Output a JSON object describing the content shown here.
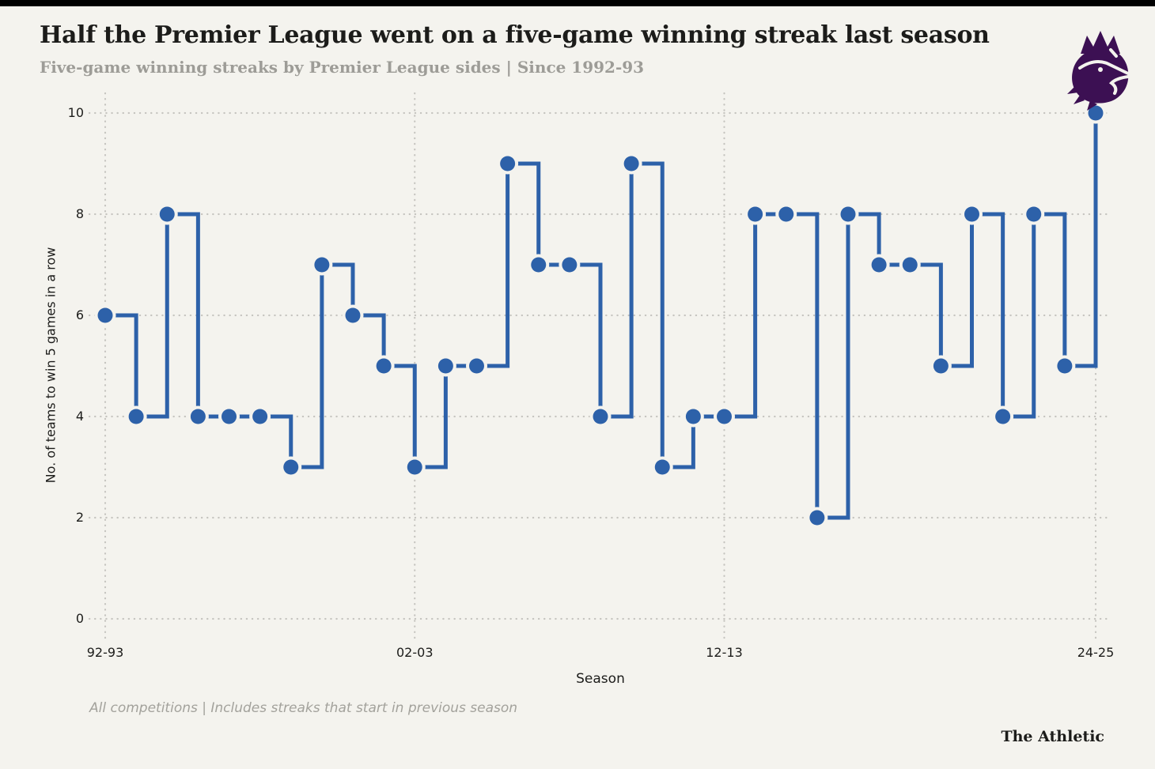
{
  "page": {
    "background": "#f4f3ee",
    "top_bar_color": "#000000"
  },
  "header": {
    "title": "Half the Premier League went on a five-game winning streak last season",
    "subtitle": "Five-game winning streaks by Premier League sides | Since 1992-93"
  },
  "logo": {
    "name": "premier-league-lion-crest",
    "color": "#3c1053"
  },
  "chart_data": {
    "type": "line",
    "step_mode": "step-after",
    "title": "Half the Premier League went on a five-game winning streak last season",
    "xlabel": "Season",
    "ylabel": "No. of teams to win 5 games in a row",
    "ylim": [
      0,
      10
    ],
    "y_ticks": [
      0,
      2,
      4,
      6,
      8,
      10
    ],
    "grid": "dotted",
    "legend": "none",
    "line_color": "#2d61a9",
    "marker": "circle",
    "categories": [
      "92-93",
      "93-94",
      "94-95",
      "95-96",
      "96-97",
      "97-98",
      "98-99",
      "99-00",
      "00-01",
      "01-02",
      "02-03",
      "03-04",
      "04-05",
      "05-06",
      "06-07",
      "07-08",
      "08-09",
      "09-10",
      "10-11",
      "11-12",
      "12-13",
      "13-14",
      "14-15",
      "15-16",
      "16-17",
      "17-18",
      "18-19",
      "19-20",
      "20-21",
      "21-22",
      "22-23",
      "23-24",
      "24-25"
    ],
    "values": [
      6,
      4,
      8,
      4,
      4,
      4,
      3,
      7,
      6,
      5,
      3,
      5,
      5,
      9,
      7,
      7,
      4,
      9,
      3,
      4,
      4,
      8,
      8,
      2,
      8,
      7,
      7,
      5,
      8,
      4,
      8,
      5,
      10
    ],
    "x_tick_labels": [
      "92-93",
      "02-03",
      "12-13",
      "24-25"
    ],
    "x_tick_indices": [
      0,
      10,
      20,
      32
    ]
  },
  "footer": {
    "note": "All competitions | Includes streaks that start in previous season",
    "wordmark": "The Athletic"
  }
}
